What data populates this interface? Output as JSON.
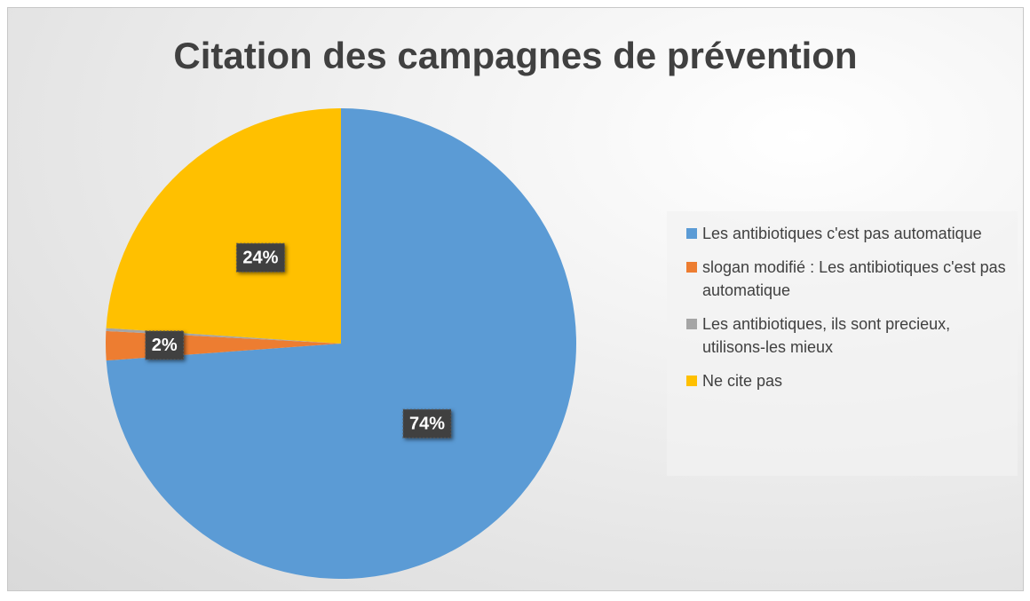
{
  "chart_data": {
    "type": "pie",
    "title": "Citation des campagnes de prévention",
    "categories": [
      "Les antibiotiques c'est pas automatique",
      "slogan modifié : Les antibiotiques c'est pas automatique",
      "Les antibiotiques, ils sont precieux, utilisons-les mieux",
      "Ne cite pas"
    ],
    "values": [
      74,
      2,
      0.2,
      24
    ],
    "value_labels": [
      "74%",
      "2%",
      null,
      "24%"
    ],
    "colors": [
      "#5b9bd5",
      "#ed7d31",
      "#a5a5a5",
      "#ffc000"
    ],
    "legend": "right"
  }
}
